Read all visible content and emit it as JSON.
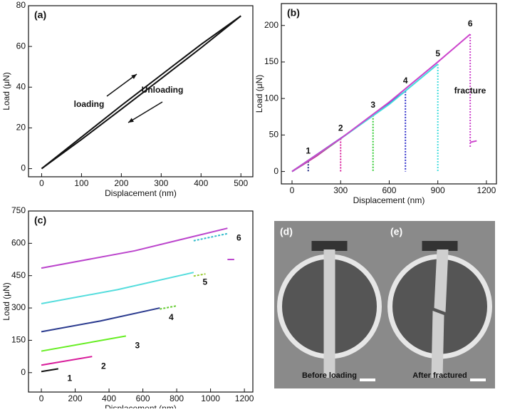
{
  "chart_data": [
    {
      "type": "line",
      "panel_label": "(a)",
      "x_label": "Displacement (nm)",
      "y_label": "Load (μN)",
      "xlim": [
        -33,
        530
      ],
      "ylim": [
        -4,
        80
      ],
      "xticks": [
        0,
        100,
        200,
        300,
        400,
        500
      ],
      "yticks": [
        0,
        20,
        40,
        60,
        80
      ],
      "annotations": [
        "loading",
        "Unloading"
      ],
      "series": [
        {
          "color": "#111111",
          "x": [
            0,
            100,
            200,
            300,
            400,
            500
          ],
          "values": [
            0,
            15.5,
            31,
            46,
            61,
            75
          ]
        },
        {
          "color": "#111111",
          "x": [
            0,
            100,
            200,
            300,
            400,
            500
          ],
          "values": [
            0,
            14.3,
            29.2,
            44.2,
            59.3,
            75
          ]
        }
      ]
    },
    {
      "type": "line",
      "panel_label": "(b)",
      "x_label": "Displacement (nm)",
      "y_label": "Load (μN)",
      "xlim": [
        -66,
        1262
      ],
      "ylim": [
        -17,
        230
      ],
      "xticks": [
        0,
        300,
        600,
        900,
        1200
      ],
      "yticks": [
        0,
        50,
        100,
        150,
        200
      ],
      "annotations": [
        "fracture"
      ],
      "series": [
        {
          "name": "1",
          "color": "#1a237e",
          "x": [
            0,
            100
          ],
          "values": [
            0,
            14
          ]
        },
        {
          "name": "2",
          "color": "#d81b9a",
          "x": [
            0,
            150,
            300
          ],
          "values": [
            0,
            21,
            45
          ]
        },
        {
          "name": "3",
          "color": "#33cc33",
          "x": [
            0,
            250,
            500
          ],
          "values": [
            0,
            37,
            77
          ]
        },
        {
          "name": "4",
          "color": "#3333cc",
          "x": [
            0,
            350,
            700
          ],
          "values": [
            0,
            53,
            110
          ]
        },
        {
          "name": "5",
          "color": "#44dddd",
          "x": [
            0,
            300,
            600,
            900
          ],
          "values": [
            0,
            45,
            92,
            147
          ]
        },
        {
          "name": "6",
          "color": "#cc44cc",
          "x": [
            0,
            300,
            600,
            900,
            1100
          ],
          "values": [
            0,
            45,
            95,
            150,
            188
          ]
        },
        {
          "color": "#cc44cc",
          "x": [
            1100,
            1140
          ],
          "values": [
            40,
            42
          ]
        }
      ]
    },
    {
      "type": "line",
      "panel_label": "(c)",
      "x_label": "Displacement (nm)",
      "y_label": "Load (μN)",
      "xlim": [
        -76,
        1250
      ],
      "ylim": [
        -90,
        750
      ],
      "xticks": [
        0,
        200,
        400,
        600,
        800,
        1000,
        1200
      ],
      "yticks": [
        0,
        150,
        300,
        450,
        600,
        750
      ],
      "series": [
        {
          "name": "1",
          "color": "#111111",
          "x": [
            0,
            100
          ],
          "values": [
            5,
            18
          ]
        },
        {
          "name": "2",
          "color": "#d81b9a",
          "x": [
            0,
            300
          ],
          "values": [
            35,
            75
          ]
        },
        {
          "name": "3",
          "color": "#66ee22",
          "x": [
            0,
            500
          ],
          "values": [
            100,
            170
          ]
        },
        {
          "name": "4",
          "color": "#2a3a8e",
          "x": [
            0,
            350,
            700
          ],
          "values": [
            190,
            240,
            300
          ]
        },
        {
          "color": "#66cc33",
          "dash": true,
          "x": [
            700,
            800
          ],
          "values": [
            295,
            310
          ]
        },
        {
          "name": "5",
          "color": "#55dddd",
          "x": [
            0,
            450,
            900
          ],
          "values": [
            320,
            385,
            465
          ]
        },
        {
          "color": "#99cc33",
          "dash": true,
          "x": [
            900,
            970
          ],
          "values": [
            448,
            458
          ]
        },
        {
          "name": "6",
          "color": "#bb44cc",
          "x": [
            0,
            550,
            1100
          ],
          "values": [
            485,
            565,
            670
          ]
        },
        {
          "color": "#33bbcc",
          "dash": true,
          "x": [
            900,
            1100
          ],
          "values": [
            612,
            645
          ]
        },
        {
          "color": "#bb44cc",
          "x": [
            1100,
            1140
          ],
          "values": [
            525,
            525
          ]
        }
      ]
    }
  ],
  "images": [
    {
      "panel_label": "(d)",
      "caption": "Before loading"
    },
    {
      "panel_label": "(e)",
      "caption": "After fractured"
    }
  ]
}
